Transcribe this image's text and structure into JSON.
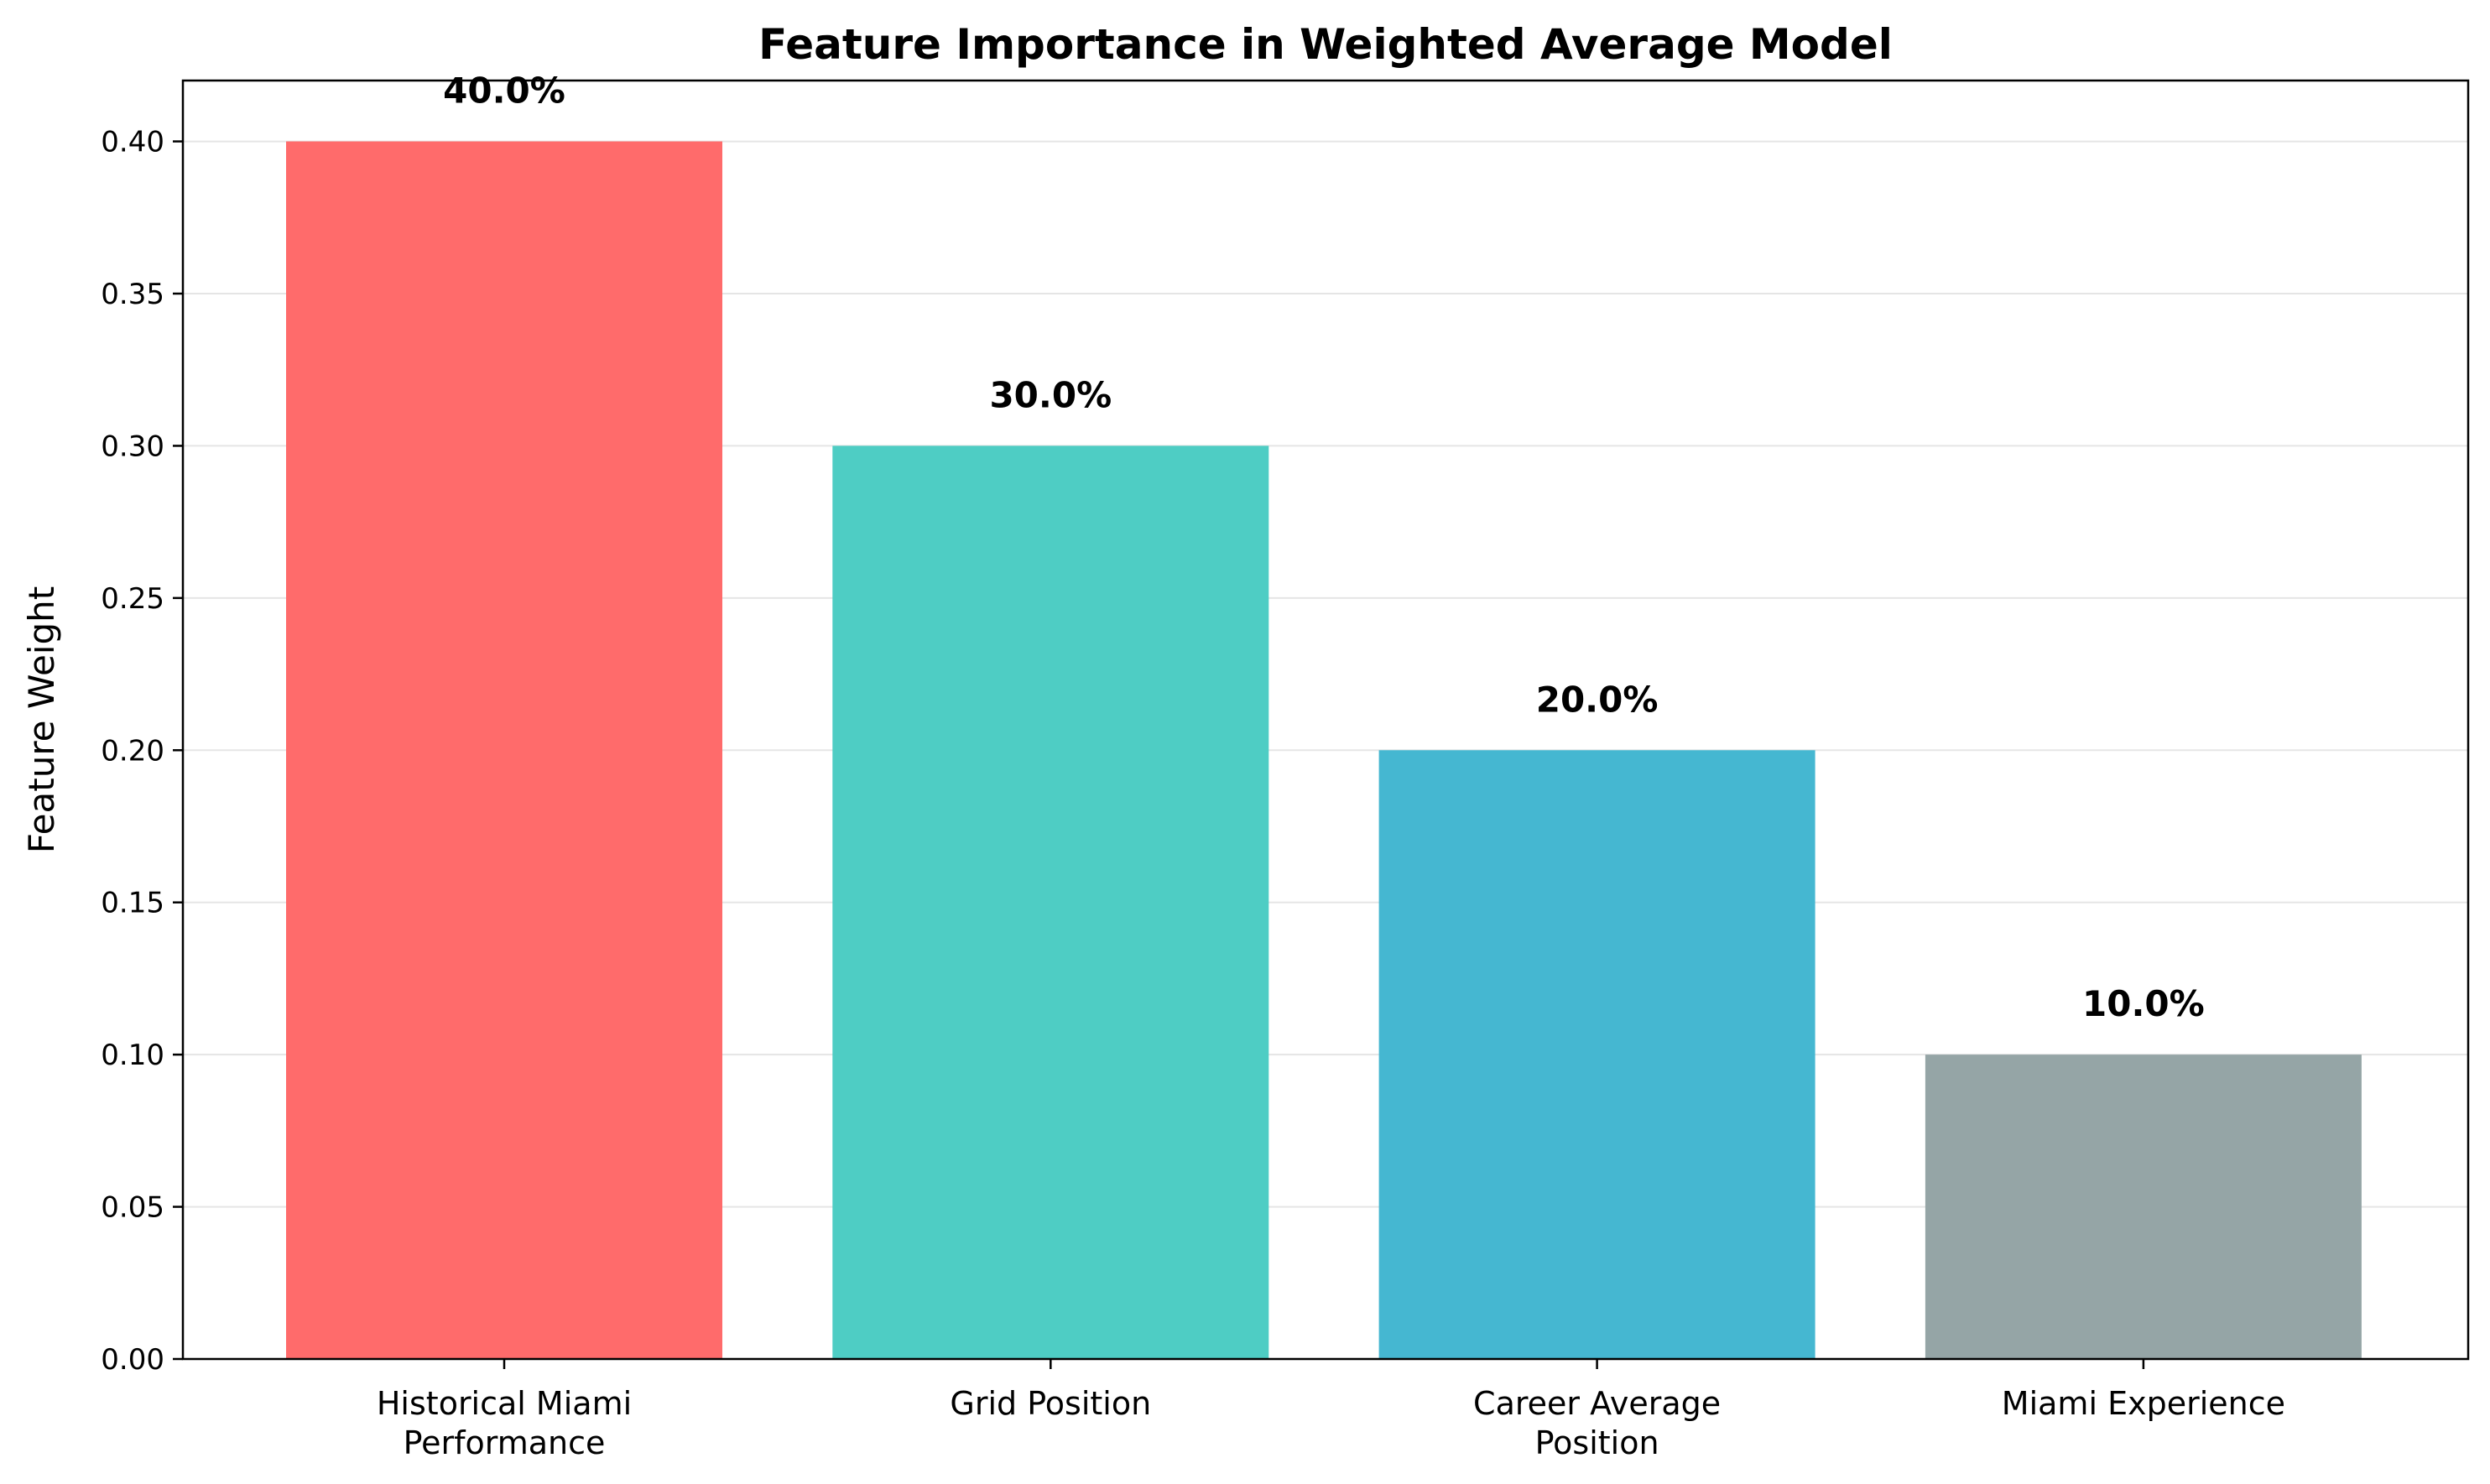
{
  "chart_data": {
    "type": "bar",
    "title": "Feature Importance in Weighted Average Model",
    "xlabel": "",
    "ylabel": "Feature Weight",
    "categories": [
      [
        "Historical Miami",
        "Performance"
      ],
      [
        "Grid Position"
      ],
      [
        "Career Average",
        "Position"
      ],
      [
        "Miami Experience"
      ]
    ],
    "values": [
      0.4,
      0.3,
      0.2,
      0.1
    ],
    "data_labels": [
      "40.0%",
      "30.0%",
      "20.0%",
      "10.0%"
    ],
    "colors": [
      "#FF6B6B",
      "#4ECDC4",
      "#45B7D1",
      "#95A5A6"
    ],
    "ylim": [
      0,
      0.42
    ],
    "yticks": [
      0.0,
      0.05,
      0.1,
      0.15,
      0.2,
      0.25,
      0.3,
      0.35,
      0.4
    ],
    "ytick_labels": [
      "0.00",
      "0.05",
      "0.10",
      "0.15",
      "0.20",
      "0.25",
      "0.30",
      "0.35",
      "0.40"
    ],
    "grid": "y",
    "grid_color": "#e5e5e5",
    "legend": "none"
  }
}
